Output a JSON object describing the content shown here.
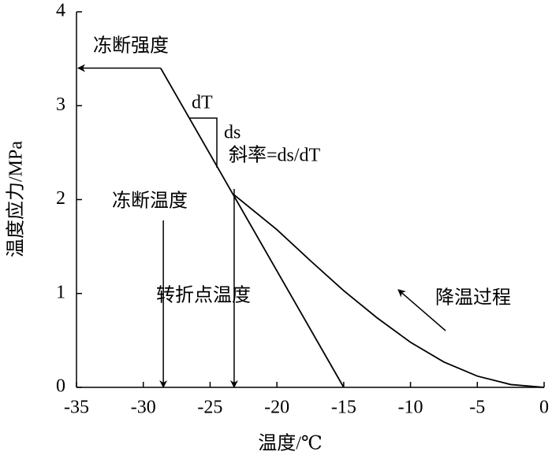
{
  "chart_data": {
    "type": "line",
    "xlabel": "温度/℃",
    "ylabel": "温度应力/MPa",
    "xlim": [
      -35,
      0
    ],
    "ylim": [
      0,
      4
    ],
    "xticks": [
      -35,
      -30,
      -25,
      -20,
      -15,
      -10,
      -5,
      0
    ],
    "yticks": [
      0,
      1,
      2,
      3,
      4
    ],
    "series": [
      {
        "color": "#000000",
        "x": [
          0,
          -2.5,
          -5,
          -7.5,
          -10,
          -12.5,
          -15,
          -17.5,
          -20,
          -23.2
        ],
        "values": [
          0,
          0.03,
          0.12,
          0.27,
          0.48,
          0.74,
          1.03,
          1.35,
          1.68,
          2.05
        ]
      },
      {
        "color": "#000000",
        "x": [
          -28.7,
          -15
        ],
        "values": [
          3.4,
          0
        ]
      }
    ],
    "annotations": [
      {
        "text": "冻断强度",
        "y": 3.4
      },
      {
        "text": "冻断温度",
        "x": -28.5
      },
      {
        "text": "转折点温度",
        "x": -23.2
      },
      {
        "text": "dT"
      },
      {
        "text": "ds"
      },
      {
        "text": "斜率=ds/dT"
      },
      {
        "text": "降温过程"
      }
    ]
  }
}
